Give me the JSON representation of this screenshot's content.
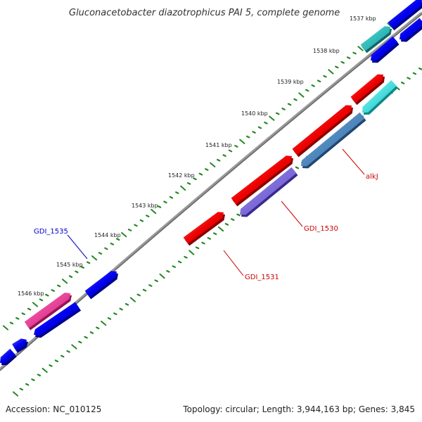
{
  "map": {
    "title": "Gluconacetobacter diazotrophicus PAI 5, complete genome",
    "accession": "Accession: NC_010125",
    "summary": "Topology: circular; Length: 3,944,163 bp; Genes: 3,845"
  },
  "scale": {
    "tick_labels": [
      "1546 kbp",
      "1545 kbp",
      "1544 kbp",
      "1543 kbp",
      "1542 kbp",
      "1541 kbp",
      "1540 kbp",
      "1539 kbp",
      "1538 kbp",
      "1537 kbp"
    ]
  },
  "gene_labels": [
    {
      "text": "GDI_1535",
      "color": "#0000cc"
    },
    {
      "text": "GDI_1530",
      "color": "#cc0000"
    },
    {
      "text": "GDI_1531",
      "color": "#cc0000"
    },
    {
      "text": "alkJ",
      "color": "#cc0000"
    }
  ],
  "colors": {
    "backbone": "#888888",
    "tick_green": "#228822",
    "gene_red": "#ee1111",
    "gene_blue": "#1111ee",
    "gene_purple": "#7a68d8",
    "gene_steel": "#4a88c0",
    "gene_cyan": "#22dddd",
    "gene_pink": "#ee3399",
    "gene_teal": "#22bbbb"
  }
}
